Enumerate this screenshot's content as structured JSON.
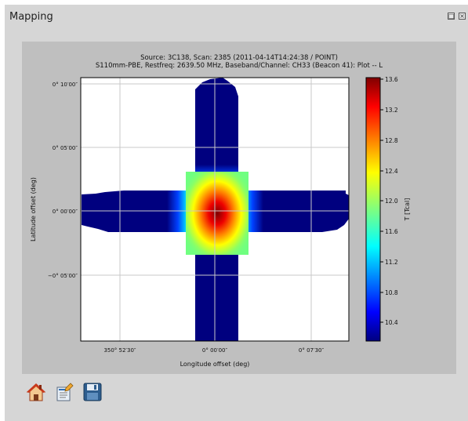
{
  "window": {
    "title": "Mapping",
    "icons": [
      "restore-icon",
      "close-icon"
    ]
  },
  "plot": {
    "title_line1": "Source: 3C138, Scan: 2385 (2011-04-14T14:24:38 / POINT)",
    "title_line2": "S110mm-PBE, Restfreq: 2639.50 MHz, Baseband/Channel: CH33 (Beacon 41): Plot -- L",
    "xlabel": "Longitude offset (deg)",
    "ylabel": "Latitude offset (deg)",
    "xticks": [
      "350° 52′30″",
      "0° 00′00″",
      "0° 07′30″"
    ],
    "yticks": [
      "0° 10′00″",
      "0° 05′00″",
      "0° 00′00″",
      "−0° 05′00″"
    ],
    "colorbar_label": "T [Tcal]",
    "colorbar_ticks": [
      "13.6",
      "13.2",
      "12.8",
      "12.4",
      "12.0",
      "11.6",
      "11.2",
      "10.8",
      "10.4"
    ]
  },
  "chart_data": {
    "type": "heatmap",
    "colormap": "jet",
    "vmin": 10.15,
    "vmax": 13.6,
    "peak_value": 13.6,
    "background_value": 10.2,
    "grid": true,
    "shape": "cross scan"
  },
  "toolbar": {
    "buttons": [
      "home-icon",
      "settings-edit-icon",
      "save-icon"
    ]
  }
}
